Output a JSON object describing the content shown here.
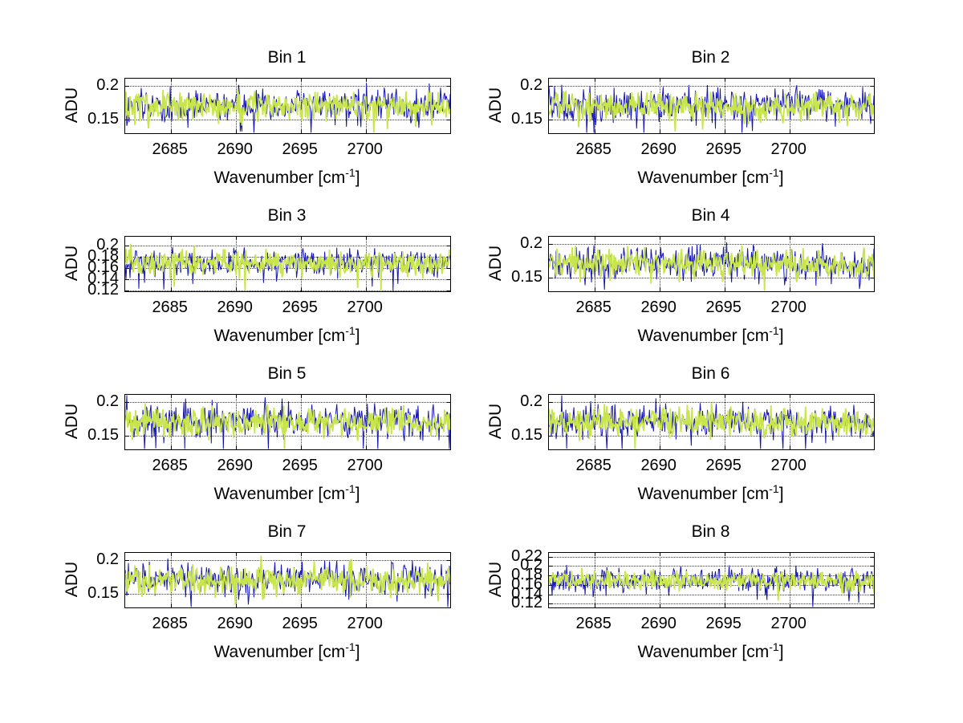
{
  "figure": {
    "background": "#ffffff",
    "xlabel_pre": "Wavenumber [cm",
    "xlabel_sup": "-1",
    "xlabel_post": "]",
    "ylabel": "ADU",
    "grid_color": "#3a3a3a",
    "axis_color": "#000000"
  },
  "chart_data": [
    {
      "type": "line",
      "title": "Bin 1",
      "xlabel": "Wavenumber [cm^-1]",
      "ylabel": "ADU",
      "xlim": [
        2681.5,
        2706.5
      ],
      "ylim": [
        0.13,
        0.21
      ],
      "grid": true,
      "legend": "none",
      "x_ticks": [
        {
          "v": 2685,
          "label": "2685"
        },
        {
          "v": 2690,
          "label": "2690"
        },
        {
          "v": 2695,
          "label": "2695"
        },
        {
          "v": 2700,
          "label": "2700"
        }
      ],
      "y_ticks": [
        {
          "v": 0.2,
          "label": "0.2"
        },
        {
          "v": 0.15,
          "label": "0.15"
        }
      ],
      "series": [
        {
          "name": "trace-blue",
          "color": "#1414b4",
          "stroke_width": 1.0,
          "mean": 0.171,
          "std": 0.0125,
          "spike_prob": 0.02,
          "n": 405,
          "seed": 101
        },
        {
          "name": "trace-green",
          "color": "#c8e64b",
          "stroke_width": 1.8,
          "mean": 0.17,
          "std": 0.0105,
          "spike_prob": 0.008,
          "n": 405,
          "seed": 201
        }
      ]
    },
    {
      "type": "line",
      "title": "Bin 2",
      "xlabel": "Wavenumber [cm^-1]",
      "ylabel": "ADU",
      "xlim": [
        2681.5,
        2706.5
      ],
      "ylim": [
        0.13,
        0.21
      ],
      "grid": true,
      "legend": "none",
      "x_ticks": [
        {
          "v": 2685,
          "label": "2685"
        },
        {
          "v": 2690,
          "label": "2690"
        },
        {
          "v": 2695,
          "label": "2695"
        },
        {
          "v": 2700,
          "label": "2700"
        }
      ],
      "y_ticks": [
        {
          "v": 0.2,
          "label": "0.2"
        },
        {
          "v": 0.15,
          "label": "0.15"
        }
      ],
      "series": [
        {
          "name": "trace-blue",
          "color": "#1414b4",
          "stroke_width": 1.0,
          "mean": 0.171,
          "std": 0.0125,
          "spike_prob": 0.02,
          "n": 405,
          "seed": 102
        },
        {
          "name": "trace-green",
          "color": "#c8e64b",
          "stroke_width": 1.8,
          "mean": 0.17,
          "std": 0.0105,
          "spike_prob": 0.008,
          "n": 405,
          "seed": 202
        }
      ]
    },
    {
      "type": "line",
      "title": "Bin 3",
      "xlabel": "Wavenumber [cm^-1]",
      "ylabel": "ADU",
      "xlim": [
        2681.5,
        2706.5
      ],
      "ylim": [
        0.118,
        0.215
      ],
      "grid": true,
      "legend": "none",
      "x_ticks": [
        {
          "v": 2685,
          "label": "2685"
        },
        {
          "v": 2690,
          "label": "2690"
        },
        {
          "v": 2695,
          "label": "2695"
        },
        {
          "v": 2700,
          "label": "2700"
        }
      ],
      "y_ticks": [
        {
          "v": 0.2,
          "label": "0.2"
        },
        {
          "v": 0.18,
          "label": "0.18"
        },
        {
          "v": 0.16,
          "label": "0.16"
        },
        {
          "v": 0.14,
          "label": "0.14"
        },
        {
          "v": 0.12,
          "label": "0.12"
        }
      ],
      "series": [
        {
          "name": "trace-blue",
          "color": "#1414b4",
          "stroke_width": 1.0,
          "mean": 0.169,
          "std": 0.012,
          "spike_prob": 0.02,
          "n": 405,
          "seed": 103
        },
        {
          "name": "trace-green",
          "color": "#c8e64b",
          "stroke_width": 1.8,
          "mean": 0.168,
          "std": 0.0105,
          "spike_prob": 0.012,
          "n": 405,
          "seed": 203
        }
      ]
    },
    {
      "type": "line",
      "title": "Bin 4",
      "xlabel": "Wavenumber [cm^-1]",
      "ylabel": "ADU",
      "xlim": [
        2681.5,
        2706.5
      ],
      "ylim": [
        0.13,
        0.21
      ],
      "grid": true,
      "legend": "none",
      "x_ticks": [
        {
          "v": 2685,
          "label": "2685"
        },
        {
          "v": 2690,
          "label": "2690"
        },
        {
          "v": 2695,
          "label": "2695"
        },
        {
          "v": 2700,
          "label": "2700"
        }
      ],
      "y_ticks": [
        {
          "v": 0.2,
          "label": "0.2"
        },
        {
          "v": 0.15,
          "label": "0.15"
        }
      ],
      "series": [
        {
          "name": "trace-blue",
          "color": "#1414b4",
          "stroke_width": 1.0,
          "mean": 0.171,
          "std": 0.0125,
          "spike_prob": 0.02,
          "n": 405,
          "seed": 104
        },
        {
          "name": "trace-green",
          "color": "#c8e64b",
          "stroke_width": 1.8,
          "mean": 0.17,
          "std": 0.0105,
          "spike_prob": 0.008,
          "n": 405,
          "seed": 204
        }
      ]
    },
    {
      "type": "line",
      "title": "Bin 5",
      "xlabel": "Wavenumber [cm^-1]",
      "ylabel": "ADU",
      "xlim": [
        2681.5,
        2706.5
      ],
      "ylim": [
        0.13,
        0.21
      ],
      "grid": true,
      "legend": "none",
      "x_ticks": [
        {
          "v": 2685,
          "label": "2685"
        },
        {
          "v": 2690,
          "label": "2690"
        },
        {
          "v": 2695,
          "label": "2695"
        },
        {
          "v": 2700,
          "label": "2700"
        }
      ],
      "y_ticks": [
        {
          "v": 0.2,
          "label": "0.2"
        },
        {
          "v": 0.15,
          "label": "0.15"
        }
      ],
      "series": [
        {
          "name": "trace-blue",
          "color": "#1414b4",
          "stroke_width": 1.0,
          "mean": 0.172,
          "std": 0.0125,
          "spike_prob": 0.02,
          "n": 405,
          "seed": 105
        },
        {
          "name": "trace-green",
          "color": "#c8e64b",
          "stroke_width": 1.8,
          "mean": 0.17,
          "std": 0.0105,
          "spike_prob": 0.008,
          "n": 405,
          "seed": 205
        }
      ]
    },
    {
      "type": "line",
      "title": "Bin 6",
      "xlabel": "Wavenumber [cm^-1]",
      "ylabel": "ADU",
      "xlim": [
        2681.5,
        2706.5
      ],
      "ylim": [
        0.13,
        0.21
      ],
      "grid": true,
      "legend": "none",
      "x_ticks": [
        {
          "v": 2685,
          "label": "2685"
        },
        {
          "v": 2690,
          "label": "2690"
        },
        {
          "v": 2695,
          "label": "2695"
        },
        {
          "v": 2700,
          "label": "2700"
        }
      ],
      "y_ticks": [
        {
          "v": 0.2,
          "label": "0.2"
        },
        {
          "v": 0.15,
          "label": "0.15"
        }
      ],
      "series": [
        {
          "name": "trace-blue",
          "color": "#1414b4",
          "stroke_width": 1.0,
          "mean": 0.171,
          "std": 0.013,
          "spike_prob": 0.02,
          "n": 405,
          "seed": 106
        },
        {
          "name": "trace-green",
          "color": "#c8e64b",
          "stroke_width": 1.8,
          "mean": 0.17,
          "std": 0.0105,
          "spike_prob": 0.008,
          "n": 405,
          "seed": 206
        }
      ]
    },
    {
      "type": "line",
      "title": "Bin 7",
      "xlabel": "Wavenumber [cm^-1]",
      "ylabel": "ADU",
      "xlim": [
        2681.5,
        2706.5
      ],
      "ylim": [
        0.13,
        0.21
      ],
      "grid": true,
      "legend": "none",
      "x_ticks": [
        {
          "v": 2685,
          "label": "2685"
        },
        {
          "v": 2690,
          "label": "2690"
        },
        {
          "v": 2695,
          "label": "2695"
        },
        {
          "v": 2700,
          "label": "2700"
        }
      ],
      "y_ticks": [
        {
          "v": 0.2,
          "label": "0.2"
        },
        {
          "v": 0.15,
          "label": "0.15"
        }
      ],
      "series": [
        {
          "name": "trace-blue",
          "color": "#1414b4",
          "stroke_width": 1.0,
          "mean": 0.171,
          "std": 0.012,
          "spike_prob": 0.02,
          "n": 405,
          "seed": 107
        },
        {
          "name": "trace-green",
          "color": "#c8e64b",
          "stroke_width": 1.8,
          "mean": 0.17,
          "std": 0.0105,
          "spike_prob": 0.008,
          "n": 405,
          "seed": 207
        }
      ]
    },
    {
      "type": "line",
      "title": "Bin 8",
      "xlabel": "Wavenumber [cm^-1]",
      "ylabel": "ADU",
      "xlim": [
        2681.5,
        2706.5
      ],
      "ylim": [
        0.112,
        0.228
      ],
      "grid": true,
      "legend": "none",
      "x_ticks": [
        {
          "v": 2685,
          "label": "2685"
        },
        {
          "v": 2690,
          "label": "2690"
        },
        {
          "v": 2695,
          "label": "2695"
        },
        {
          "v": 2700,
          "label": "2700"
        }
      ],
      "y_ticks": [
        {
          "v": 0.22,
          "label": "0.22"
        },
        {
          "v": 0.2,
          "label": "0.2"
        },
        {
          "v": 0.18,
          "label": "0.18"
        },
        {
          "v": 0.16,
          "label": "0.16"
        },
        {
          "v": 0.14,
          "label": "0.14"
        },
        {
          "v": 0.12,
          "label": "0.12"
        }
      ],
      "series": [
        {
          "name": "trace-blue",
          "color": "#1414b4",
          "stroke_width": 1.0,
          "mean": 0.17,
          "std": 0.0135,
          "spike_prob": 0.02,
          "n": 405,
          "seed": 108
        },
        {
          "name": "trace-green",
          "color": "#c8e64b",
          "stroke_width": 1.8,
          "mean": 0.169,
          "std": 0.01,
          "spike_prob": 0.008,
          "n": 405,
          "seed": 208
        }
      ]
    }
  ]
}
